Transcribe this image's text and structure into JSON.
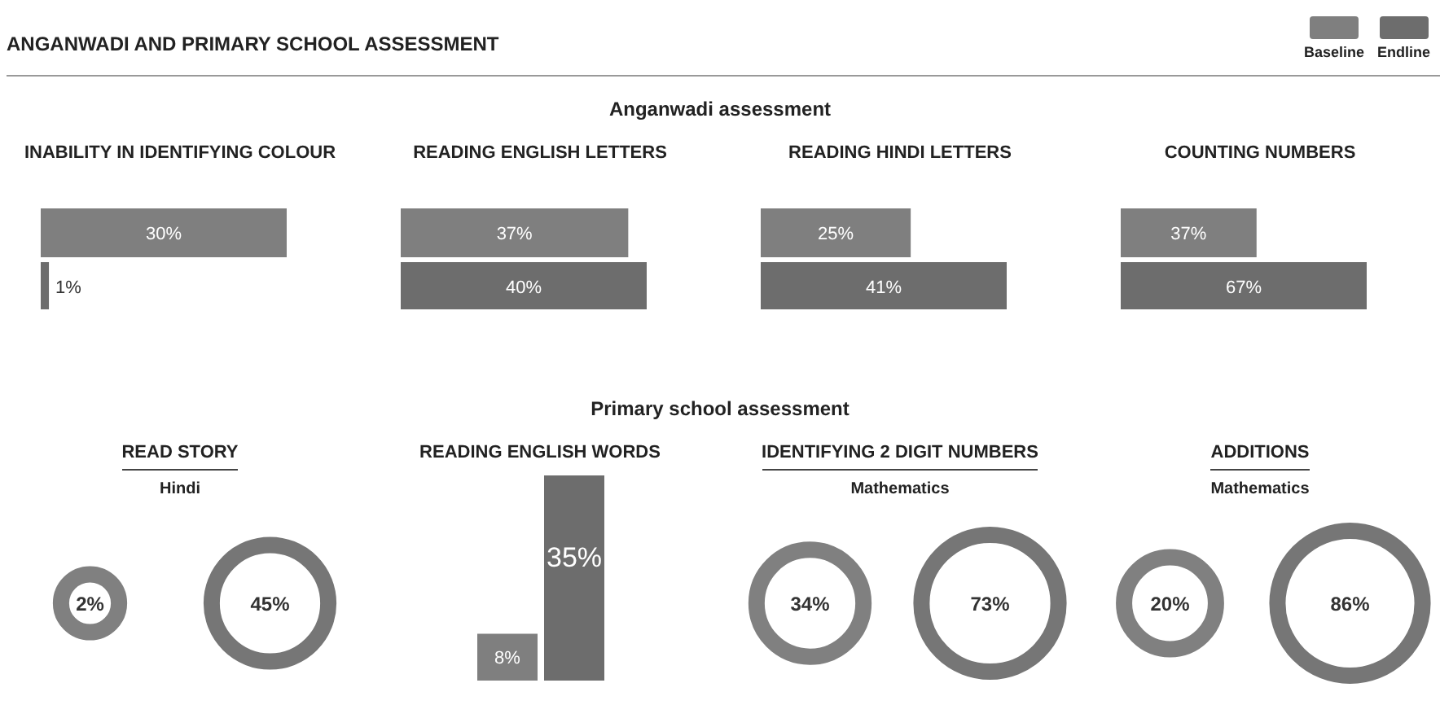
{
  "chart_data": [
    {
      "type": "bar",
      "orientation": "horizontal",
      "title": "INABILITY IN IDENTIFYING COLOUR",
      "annotations": [
        "ANGANWADI AND PRIMARY SCHOOL ASSESSMENT",
        "Anganwadi assessment"
      ],
      "legend": "top right",
      "tick_labels": false,
      "categories": [
        null
      ],
      "series": [
        {
          "name": "Baseline",
          "color": "#7f7f7f",
          "values": [
            30
          ],
          "value_labels": [
            "30%"
          ]
        },
        {
          "name": "Endline",
          "color": "#6d6d6d",
          "values": [
            1
          ],
          "value_labels": [
            "1%"
          ]
        }
      ]
    },
    {
      "type": "bar",
      "orientation": "horizontal",
      "title": "READING ENGLISH LETTERS",
      "tick_labels": false,
      "categories": [
        null
      ],
      "series": [
        {
          "color": "#7f7f7f",
          "values": [
            37
          ],
          "value_labels": [
            "37%"
          ]
        },
        {
          "color": "#6d6d6d",
          "values": [
            40
          ],
          "value_labels": [
            "40%"
          ]
        }
      ]
    },
    {
      "type": "bar",
      "orientation": "horizontal",
      "title": "READING HINDI LETTERS",
      "tick_labels": false,
      "categories": [
        null
      ],
      "series": [
        {
          "color": "#7f7f7f",
          "values": [
            25
          ],
          "value_labels": [
            "25%"
          ]
        },
        {
          "color": "#6d6d6d",
          "values": [
            41
          ],
          "value_labels": [
            "41%"
          ]
        }
      ]
    },
    {
      "type": "bar",
      "orientation": "horizontal",
      "title": "COUNTING NUMBERS",
      "tick_labels": false,
      "categories": [
        null
      ],
      "series": [
        {
          "color": "#7f7f7f",
          "values": [
            37
          ],
          "value_labels": [
            "37%"
          ]
        },
        {
          "color": "#6d6d6d",
          "values": [
            67
          ],
          "value_labels": [
            "67%"
          ]
        }
      ]
    },
    {
      "type": "other",
      "title": "READ STORY",
      "subtitle": "Hindi",
      "annotations": [
        "Primary school assessment"
      ],
      "categories": [
        null,
        null
      ],
      "series": [
        {
          "colors": [
            "#808080",
            "#767676"
          ],
          "values": [
            2,
            45
          ],
          "value_labels": [
            "2%",
            "45%"
          ]
        }
      ]
    },
    {
      "type": "bar",
      "title": "READING ENGLISH WORDS",
      "tick_labels": false,
      "categories": [
        null
      ],
      "series": [
        {
          "color": "#7f7f7f",
          "values": [
            8
          ],
          "value_labels": [
            "8%"
          ]
        },
        {
          "color": "#6d6d6d",
          "values": [
            35
          ],
          "value_labels": [
            "35%"
          ]
        }
      ]
    },
    {
      "type": "other",
      "title": "IDENTIFYING 2 DIGIT NUMBERS",
      "subtitle": "Mathematics",
      "categories": [
        null,
        null
      ],
      "series": [
        {
          "colors": [
            "#808080",
            "#767676"
          ],
          "values": [
            34,
            73
          ],
          "value_labels": [
            "34%",
            "73%"
          ]
        }
      ]
    },
    {
      "type": "other",
      "title": "ADDITIONS",
      "subtitle": "Mathematics",
      "categories": [
        null,
        null
      ],
      "series": [
        {
          "colors": [
            "#808080",
            "#767676"
          ],
          "values": [
            20,
            86
          ],
          "value_labels": [
            "20%",
            "86%"
          ]
        }
      ]
    }
  ]
}
